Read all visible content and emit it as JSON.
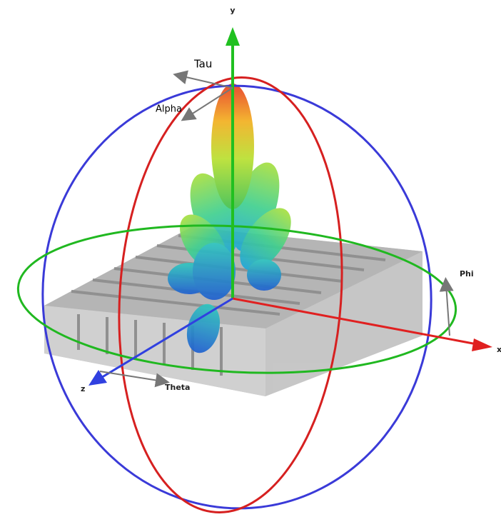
{
  "axes": {
    "x": "x",
    "y": "y",
    "z": "z"
  },
  "angles": {
    "tau": "Tau",
    "alpha": "Alpha",
    "phi": "Phi",
    "theta": "Theta"
  }
}
